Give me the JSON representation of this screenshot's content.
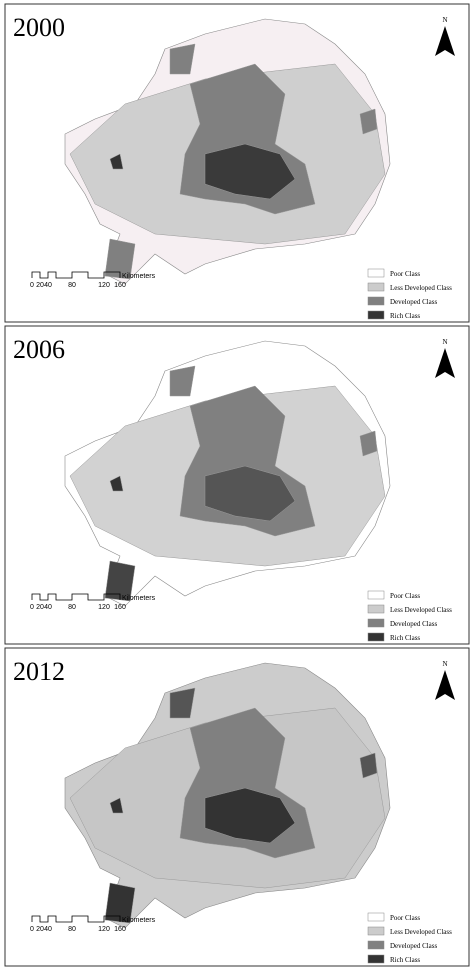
{
  "panels": [
    {
      "title": "2000",
      "north": "N",
      "legend": [
        "Poor Class",
        "Less Developed Class",
        "Developed Class",
        "Rich Class"
      ],
      "scale": {
        "ticks": [
          "0",
          "20",
          "40",
          "80",
          "120",
          "160"
        ],
        "unit": "Kilometers"
      }
    },
    {
      "title": "2006",
      "north": "N",
      "legend": [
        "Poor Class",
        "Less Developed Class",
        "Developed Class",
        "Rich Class"
      ],
      "scale": {
        "ticks": [
          "0",
          "20",
          "40",
          "80",
          "120",
          "160"
        ],
        "unit": "Kilometers"
      }
    },
    {
      "title": "2012",
      "north": "N",
      "legend": [
        "Poor Class",
        "Less Developed Class",
        "Developed Class",
        "Rich Class"
      ],
      "scale": {
        "ticks": [
          "0",
          "20",
          "40",
          "80",
          "120",
          "160"
        ],
        "unit": "Kilometers"
      }
    }
  ]
}
